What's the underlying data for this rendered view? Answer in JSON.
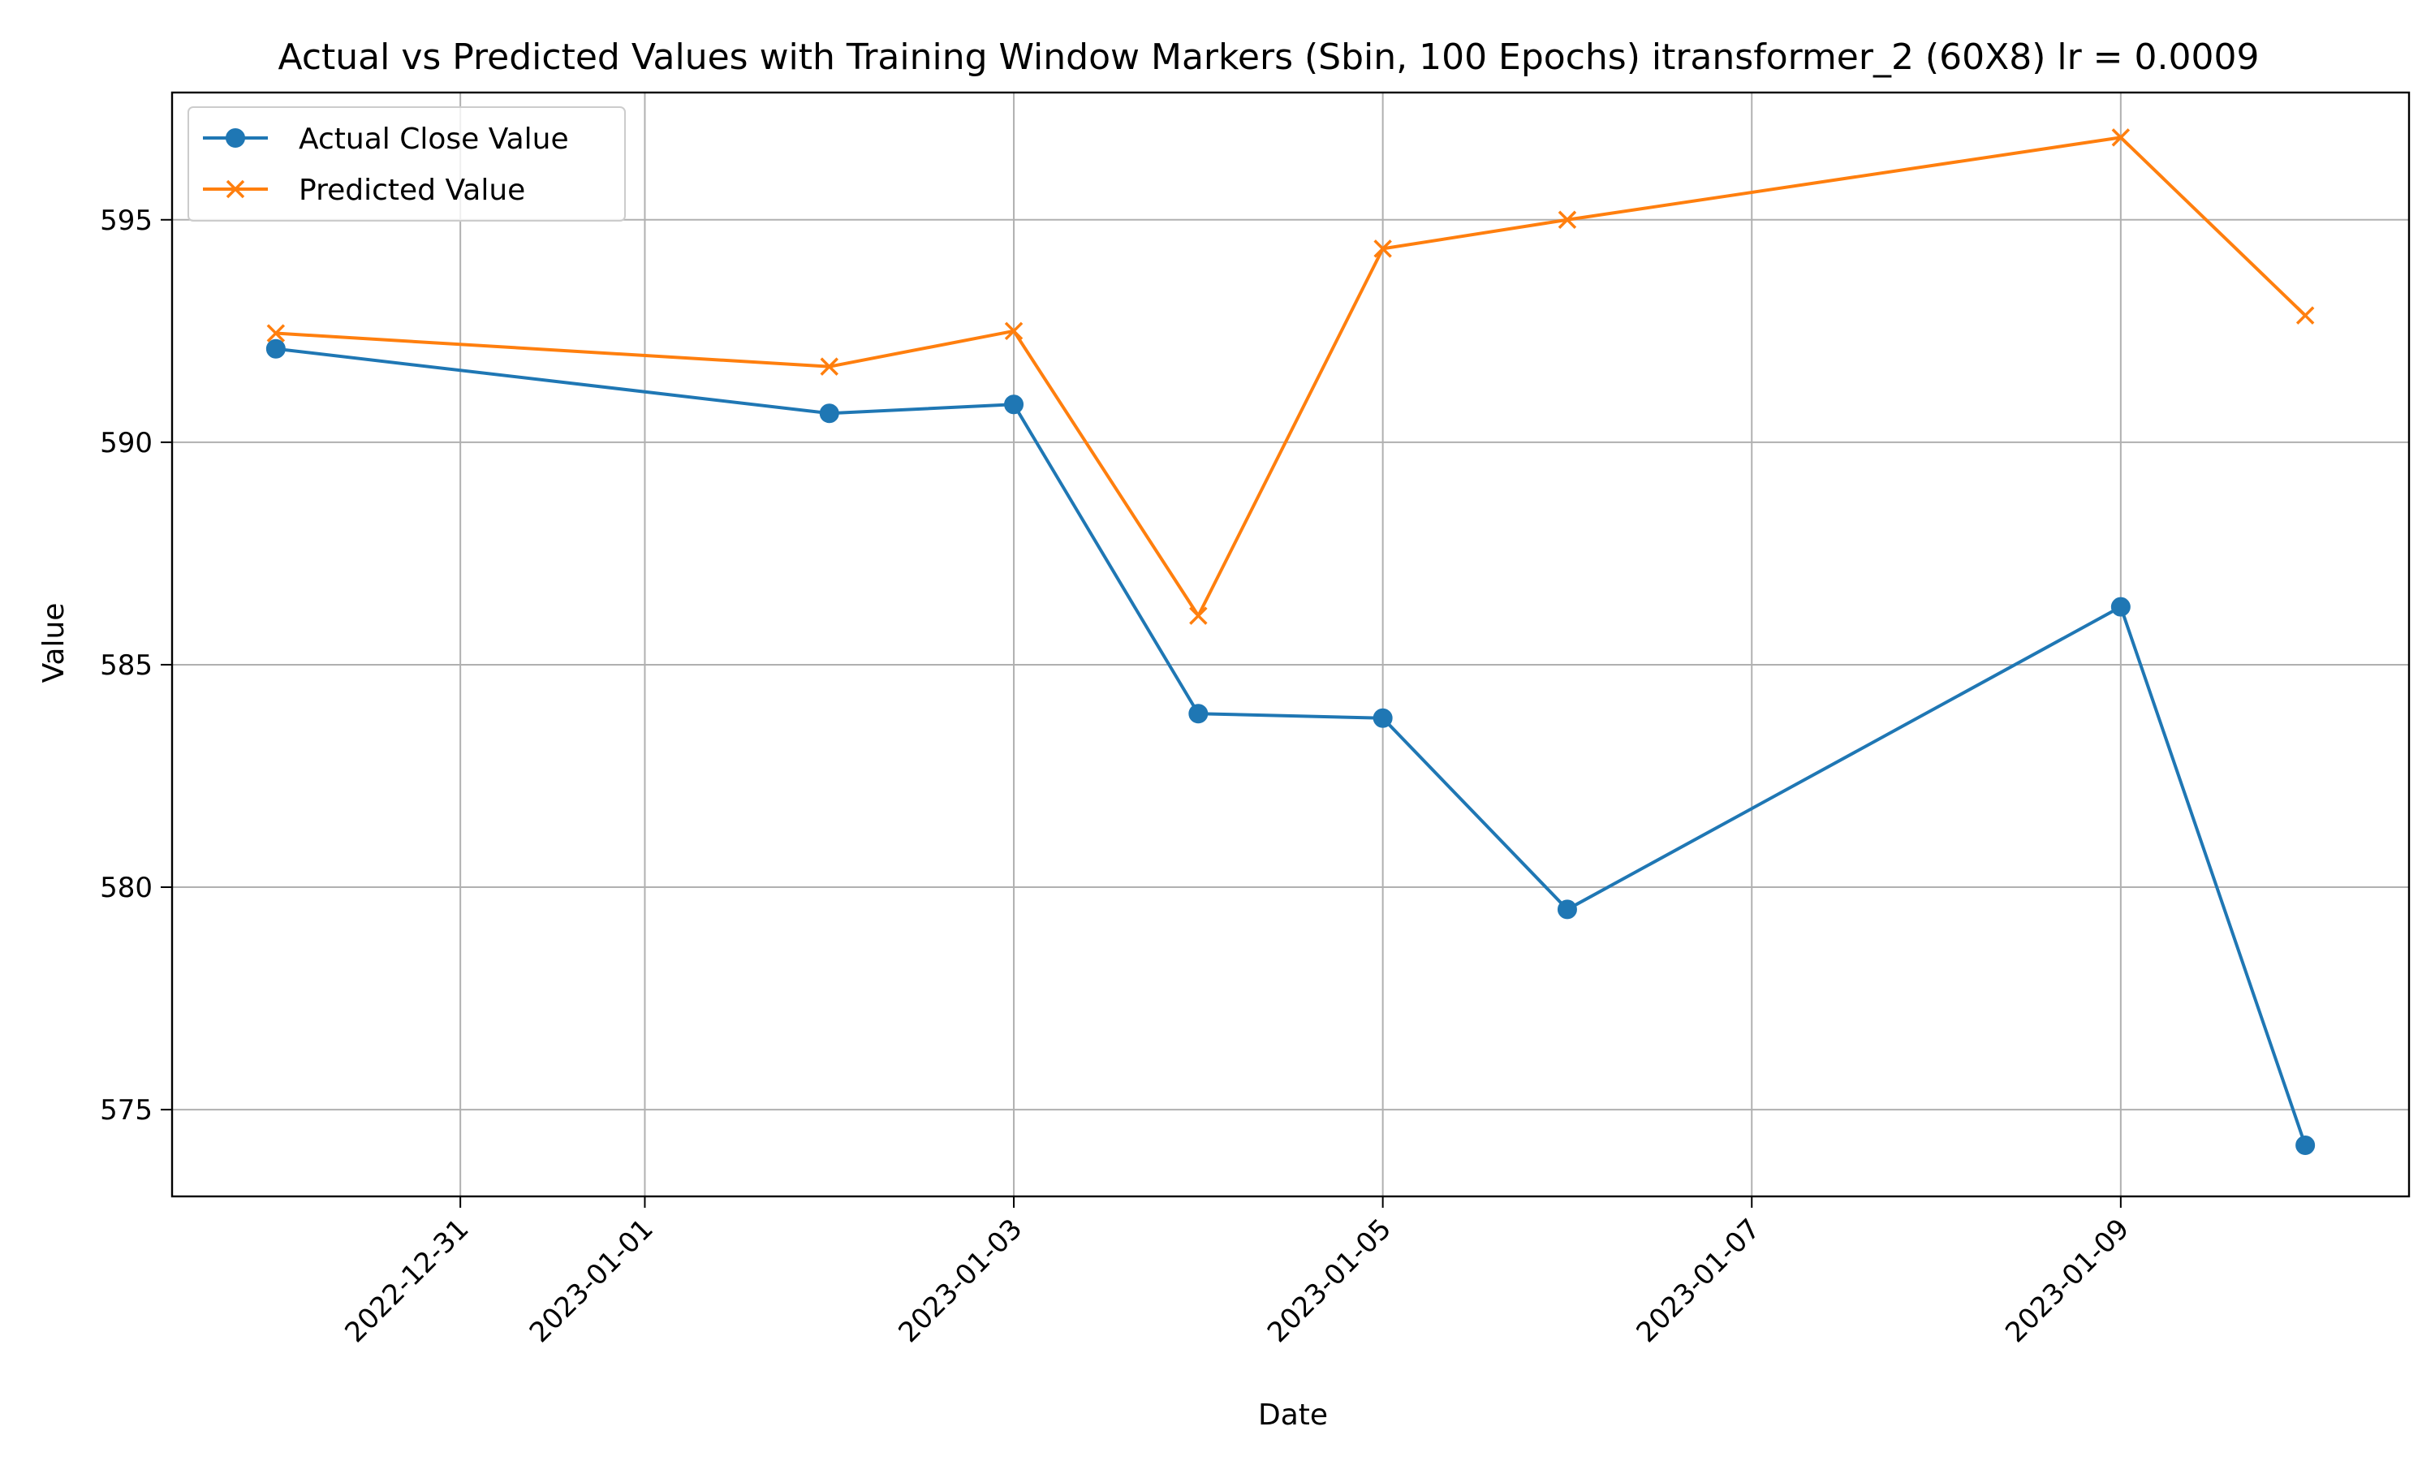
{
  "chart_data": {
    "type": "line",
    "title": "Actual vs Predicted Values with Training Window Markers (Sbin, 100 Epochs) itransformer_2 (60X8) lr = 0.0009",
    "xlabel": "Date",
    "ylabel": "Value",
    "xlim": [
      "2022-12-29T10:30",
      "2023-01-10T13:30"
    ],
    "ylim": [
      573.05,
      597.86
    ],
    "x_ticks": [
      "2022-12-31",
      "2023-01-01",
      "2023-01-03",
      "2023-01-05",
      "2023-01-07",
      "2023-01-09"
    ],
    "y_ticks": [
      575,
      580,
      585,
      590,
      595
    ],
    "grid": true,
    "legend_position": "upper-left",
    "x": [
      "2022-12-30",
      "2023-01-02",
      "2023-01-03",
      "2023-01-04",
      "2023-01-05",
      "2023-01-06",
      "2023-01-09",
      "2023-01-10"
    ],
    "series": [
      {
        "name": "Actual Close Value",
        "color": "#1f77b4",
        "marker": "circle",
        "values": [
          592.1,
          590.65,
          590.85,
          583.9,
          583.8,
          579.5,
          586.3,
          574.2
        ]
      },
      {
        "name": "Predicted Value",
        "color": "#ff7f0e",
        "marker": "x",
        "values": [
          592.45,
          591.7,
          592.5,
          586.1,
          594.35,
          595.0,
          596.85,
          592.85
        ]
      }
    ]
  }
}
